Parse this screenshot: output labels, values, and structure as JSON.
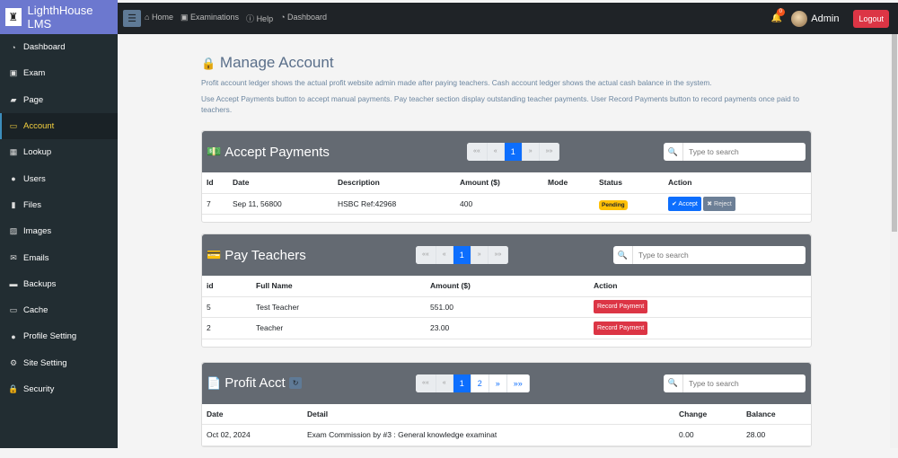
{
  "brand": {
    "name": "LighthHouse LMS",
    "logo_icon": "lighthouse-icon"
  },
  "sidebar": {
    "items": [
      {
        "label": "Dashboard",
        "icon": "tachometer-icon",
        "glyph": "◔"
      },
      {
        "label": "Exam",
        "icon": "id-card-icon",
        "glyph": "▣"
      },
      {
        "label": "Page",
        "icon": "book-icon",
        "glyph": "▰"
      },
      {
        "label": "Account",
        "icon": "money-icon",
        "glyph": "▭",
        "active": true
      },
      {
        "label": "Lookup",
        "icon": "table-icon",
        "glyph": "▦"
      },
      {
        "label": "Users",
        "icon": "user-icon",
        "glyph": "●"
      },
      {
        "label": "Files",
        "icon": "file-icon",
        "glyph": "▮"
      },
      {
        "label": "Images",
        "icon": "image-icon",
        "glyph": "▨"
      },
      {
        "label": "Emails",
        "icon": "envelope-icon",
        "glyph": "✉"
      },
      {
        "label": "Backups",
        "icon": "archive-icon",
        "glyph": "▬"
      },
      {
        "label": "Cache",
        "icon": "hdd-icon",
        "glyph": "▭"
      },
      {
        "label": "Profile Setting",
        "icon": "user-cog-icon",
        "glyph": "●"
      },
      {
        "label": "Site Setting",
        "icon": "cog-icon",
        "glyph": "⚙"
      },
      {
        "label": "Security",
        "icon": "lock-icon",
        "glyph": "🔒"
      }
    ]
  },
  "topnav": {
    "links": [
      {
        "label": "Home",
        "icon": "home-icon",
        "glyph": "⌂"
      },
      {
        "label": "Examinations",
        "icon": "id-card-icon",
        "glyph": "▣"
      },
      {
        "label": "Help",
        "icon": "info-icon",
        "glyph": "ⓘ"
      },
      {
        "label": "Dashboard",
        "icon": "tachometer-icon",
        "glyph": "◔"
      }
    ],
    "notification_count": "0",
    "user": "Admin",
    "logout": "Logout"
  },
  "page": {
    "title": "Manage Account",
    "desc1": "Profit account ledger shows the actual profit website admin made after paying teachers. Cash account ledger shows the actual cash balance in the system.",
    "desc2": "Use Accept Payments button to accept manual payments. Pay teacher section display outstanding teacher payments. User Record Payments button to record payments once paid to teachers."
  },
  "search_placeholder": "Type to search",
  "pager": {
    "first": "««",
    "prev": "«",
    "next": "»",
    "last": "»»"
  },
  "accept": {
    "title": "Accept Payments",
    "pages": [
      "1"
    ],
    "headers": [
      "Id",
      "Date",
      "Description",
      "Amount ($)",
      "Mode",
      "Status",
      "Action"
    ],
    "rows": [
      {
        "id": "7",
        "date": "Sep 11, 56800",
        "desc": "HSBC Ref:42968",
        "amount": "400",
        "mode": "",
        "status": "Pending"
      }
    ],
    "accept_label": "✔ Accept",
    "reject_label": "✖ Reject"
  },
  "pay": {
    "title": "Pay Teachers",
    "pages": [
      "1"
    ],
    "headers": [
      "id",
      "Full Name",
      "Amount ($)",
      "Action"
    ],
    "rows": [
      {
        "id": "5",
        "name": "Test Teacher",
        "amount": "551.00"
      },
      {
        "id": "2",
        "name": "Teacher",
        "amount": "23.00"
      }
    ],
    "record_label": "Record Payment"
  },
  "profit": {
    "title": "Profit Acct",
    "pages": [
      "1",
      "2"
    ],
    "headers": [
      "Date",
      "Detail",
      "Change",
      "Balance"
    ],
    "rows": [
      {
        "date": "Oct 02, 2024",
        "detail": "Exam Commission by #3 : General knowledge examinat",
        "change": "0.00",
        "balance": "28.00"
      }
    ]
  }
}
